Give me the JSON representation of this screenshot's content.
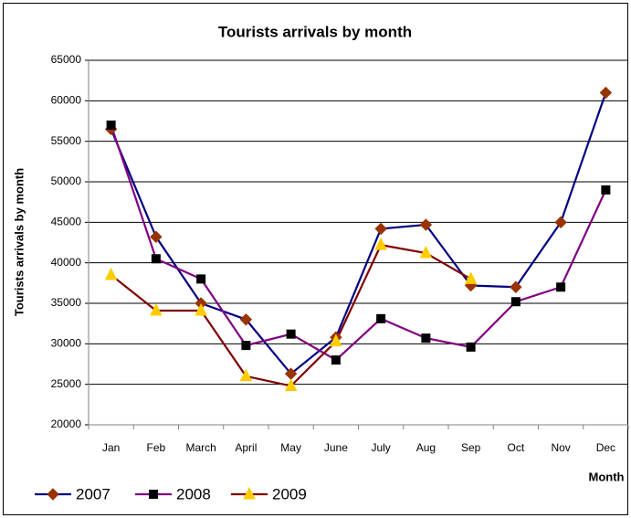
{
  "chart_data": {
    "type": "line",
    "title": "Tourists arrivals by month",
    "y_label": "Tourists arrivals by month",
    "x_label": "Month",
    "categories": [
      "Jan",
      "Feb",
      "March",
      "April",
      "May",
      "June",
      "July",
      "Aug",
      "Sep",
      "Oct",
      "Nov",
      "Dec"
    ],
    "series": [
      {
        "name": "2007",
        "color": "#000080",
        "marker": "diamond",
        "marker_color": "#993300",
        "values": [
          56500,
          43200,
          35000,
          33000,
          26300,
          30800,
          44200,
          44700,
          37200,
          37000,
          45000,
          61000
        ]
      },
      {
        "name": "2008",
        "color": "#800080",
        "marker": "square",
        "marker_color": "#000000",
        "values": [
          57000,
          40500,
          38000,
          29800,
          31200,
          28000,
          33100,
          30700,
          29600,
          35200,
          37000,
          49000
        ]
      },
      {
        "name": "2009",
        "color": "#800000",
        "marker": "triangle",
        "marker_color": "#FFCC00",
        "values": [
          38500,
          34100,
          34100,
          26000,
          24800,
          30300,
          42200,
          41200,
          38000,
          null,
          null,
          null
        ]
      }
    ],
    "ylim": [
      20000,
      65000
    ],
    "yticks": [
      20000,
      25000,
      30000,
      35000,
      40000,
      45000,
      50000,
      55000,
      60000,
      65000
    ],
    "grid": true,
    "legend": "bottom-left"
  }
}
